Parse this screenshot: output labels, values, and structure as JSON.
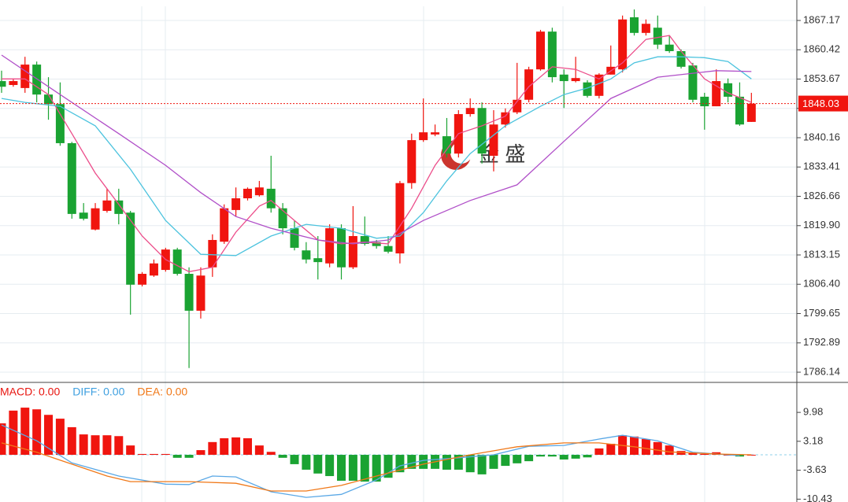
{
  "chart_data": [
    {
      "type": "candlestick",
      "open": [
        1853.2,
        1852.3,
        1851.6,
        1857.0,
        1850.1,
        1847.9,
        1838.9,
        1822.9,
        1819.0,
        1823.3,
        1825.7,
        1822.9,
        1806.3,
        1808.4,
        1809.7,
        1814.4,
        1808.8,
        1800.3,
        1810.3,
        1816.2,
        1823.5,
        1826.2,
        1826.9,
        1828.4,
        1823.9,
        1819.3,
        1814.2,
        1812.4,
        1811.2,
        1819.3,
        1810.3,
        1817.5,
        1816.1,
        1815.2,
        1813.5,
        1829.7,
        1839.6,
        1840.9,
        1840.5,
        1836.5,
        1845.6,
        1847.0,
        1836.0,
        1843.2,
        1846.0,
        1848.9,
        1855.9,
        1864.6,
        1854.7,
        1853.2,
        1852.9,
        1849.8,
        1854.7,
        1855.9,
        1867.9,
        1864.3,
        1865.5,
        1861.6,
        1860.1,
        1856.8,
        1849.6,
        1847.4,
        1852.7,
        1849.6,
        1843.8
      ],
      "high": [
        1855.6,
        1853.8,
        1858.8,
        1857.7,
        1854.1,
        1852.9,
        1839.2,
        1825.1,
        1825.1,
        1828.4,
        1828.4,
        1823.3,
        1809.2,
        1812.1,
        1814.8,
        1814.8,
        1810.3,
        1810.3,
        1817.9,
        1824.8,
        1828.7,
        1828.7,
        1830.2,
        1836.0,
        1825.1,
        1821.1,
        1816.1,
        1817.5,
        1820.2,
        1820.2,
        1824.4,
        1822.0,
        1816.6,
        1817.5,
        1830.2,
        1841.1,
        1849.2,
        1843.2,
        1844.7,
        1846.5,
        1849.2,
        1848.3,
        1846.5,
        1846.9,
        1857.4,
        1856.5,
        1865.0,
        1865.5,
        1855.9,
        1858.8,
        1853.4,
        1855.0,
        1861.4,
        1868.3,
        1869.7,
        1867.4,
        1868.3,
        1863.7,
        1860.5,
        1857.4,
        1850.5,
        1855.9,
        1853.8,
        1852.9,
        1850.5
      ],
      "low": [
        1850.5,
        1851.9,
        1850.5,
        1848.3,
        1844.3,
        1838.3,
        1821.5,
        1821.1,
        1818.8,
        1822.9,
        1820.2,
        1799.4,
        1805.9,
        1808.1,
        1809.3,
        1808.4,
        1787.1,
        1798.5,
        1808.1,
        1815.7,
        1822.0,
        1825.7,
        1826.6,
        1822.9,
        1817.9,
        1814.2,
        1811.2,
        1807.5,
        1810.3,
        1807.5,
        1809.9,
        1815.3,
        1814.6,
        1813.5,
        1811.2,
        1828.4,
        1839.2,
        1840.5,
        1835.6,
        1835.6,
        1845.0,
        1834.2,
        1832.4,
        1842.5,
        1845.6,
        1848.3,
        1855.6,
        1852.9,
        1847.0,
        1852.9,
        1849.4,
        1849.2,
        1854.7,
        1855.2,
        1863.7,
        1863.7,
        1860.6,
        1859.7,
        1856.1,
        1848.3,
        1842.0,
        1847.4,
        1848.3,
        1842.9,
        1843.8
      ],
      "close": [
        1851.9,
        1853.2,
        1857.0,
        1850.1,
        1847.9,
        1838.9,
        1822.6,
        1821.5,
        1823.9,
        1825.7,
        1822.6,
        1806.3,
        1808.8,
        1811.2,
        1814.4,
        1808.8,
        1800.3,
        1808.4,
        1816.6,
        1823.9,
        1826.2,
        1828.4,
        1828.7,
        1823.9,
        1819.3,
        1814.8,
        1812.1,
        1811.5,
        1819.3,
        1810.3,
        1817.5,
        1815.7,
        1815.2,
        1813.9,
        1829.7,
        1839.6,
        1841.4,
        1841.4,
        1836.5,
        1845.6,
        1847.0,
        1836.5,
        1843.2,
        1846.0,
        1848.9,
        1855.9,
        1864.6,
        1854.1,
        1853.2,
        1853.9,
        1849.8,
        1854.7,
        1856.5,
        1867.4,
        1864.3,
        1866.4,
        1861.6,
        1860.1,
        1856.5,
        1848.9,
        1847.4,
        1853.2,
        1849.6,
        1843.2,
        1848.0
      ],
      "up_color": "#f0150f",
      "down_color": "#1aa332",
      "ylim": [
        1783.97,
        1870.43
      ],
      "yticks": [
        1867.17,
        1860.42,
        1853.67,
        1846.92,
        1840.16,
        1833.41,
        1826.66,
        {
          "value": 1819.9,
          "label": "1819.90"
        },
        1813.15,
        {
          "value": 1806.4,
          "label": "1806.40"
        },
        1799.65,
        1792.89,
        1786.14
      ],
      "last_price": 1848.03,
      "ma": [
        {
          "color": "#ec4d8a",
          "x": [
            0,
            2,
            4,
            6,
            8,
            10,
            12,
            14,
            16,
            18,
            20,
            22,
            23,
            25,
            27,
            29,
            31,
            33,
            35,
            37,
            39,
            41,
            43,
            45,
            47,
            49,
            51,
            53,
            55,
            57,
            58,
            60,
            62,
            64
          ],
          "values": [
            1853.7,
            1853.7,
            1850.1,
            1841.1,
            1832.0,
            1824.8,
            1817.5,
            1812.1,
            1809.3,
            1810.3,
            1818.4,
            1824.4,
            1825.7,
            1821.1,
            1816.6,
            1815.7,
            1816.1,
            1815.7,
            1823.9,
            1833.8,
            1841.1,
            1842.9,
            1845.1,
            1851.9,
            1856.5,
            1855.9,
            1853.7,
            1857.4,
            1862.8,
            1863.7,
            1860.1,
            1853.7,
            1850.5,
            1848.3
          ]
        },
        {
          "color": "#4cc3de",
          "x": [
            0,
            2,
            5,
            8,
            11,
            14,
            17,
            20,
            23,
            26,
            29,
            32,
            34,
            36,
            38,
            40,
            43,
            46,
            48,
            50,
            52,
            54,
            56,
            58,
            60,
            62,
            64
          ],
          "values": [
            1849.2,
            1848.3,
            1847.4,
            1842.9,
            1832.9,
            1821.1,
            1813.3,
            1813.0,
            1817.5,
            1820.2,
            1819.3,
            1817.0,
            1817.5,
            1822.9,
            1830.2,
            1836.5,
            1842.9,
            1847.4,
            1850.1,
            1851.6,
            1853.7,
            1857.4,
            1858.8,
            1858.8,
            1858.6,
            1857.7,
            1853.7
          ]
        },
        {
          "color": "#b04fc8",
          "x": [
            0,
            5,
            10,
            14,
            17,
            20,
            23,
            27,
            30,
            33,
            36,
            40,
            44,
            48,
            52,
            56,
            59,
            61,
            64
          ],
          "values": [
            1859.2,
            1850.1,
            1841.1,
            1833.8,
            1827.5,
            1822.0,
            1819.3,
            1816.6,
            1815.7,
            1816.6,
            1821.1,
            1825.7,
            1829.3,
            1839.3,
            1849.2,
            1854.1,
            1855.0,
            1855.6,
            1855.4
          ]
        }
      ],
      "watermark": "金 盛"
    },
    {
      "type": "macd",
      "legend": [
        {
          "text": "MACD: 0.00",
          "color": "#e8150f"
        },
        {
          "text": "DIFF: 0.00",
          "color": "#3fa0e0"
        },
        {
          "text": "DEA: 0.00",
          "color": "#f07818"
        }
      ],
      "histogram": [
        7.4,
        10.4,
        11.1,
        10.7,
        9.4,
        8.5,
        6.5,
        4.8,
        4.6,
        4.6,
        4.4,
        2.2,
        0.2,
        0.2,
        0.2,
        -0.7,
        -0.7,
        1.1,
        3.0,
        3.9,
        4.1,
        3.9,
        2.2,
        0.7,
        -0.7,
        -2.2,
        -3.5,
        -4.4,
        -5.0,
        -6.1,
        -6.1,
        -6.3,
        -6.3,
        -5.4,
        -4.1,
        -3.3,
        -3.3,
        -3.3,
        -3.5,
        -3.5,
        -4.1,
        -4.6,
        -3.3,
        -2.6,
        -2.0,
        -1.5,
        -0.4,
        -0.4,
        -1.1,
        -0.9,
        -0.6,
        1.5,
        2.6,
        4.6,
        4.3,
        3.7,
        3.0,
        2.2,
        0.9,
        0.4,
        0.2,
        0.6,
        0,
        -0.4,
        0
      ],
      "up_color": "#f0150f",
      "down_color": "#1aa332",
      "series": [
        {
          "color": "#5aa8e6",
          "x": [
            0,
            3,
            6,
            10,
            14,
            16,
            18,
            20,
            23,
            26,
            29,
            32,
            34,
            36,
            39,
            42,
            45,
            48,
            51,
            53,
            56,
            59,
            63
          ],
          "values": [
            7.0,
            3.3,
            -1.9,
            -5.0,
            -6.9,
            -7.0,
            -5.0,
            -5.2,
            -8.7,
            -10.0,
            -9.3,
            -5.9,
            -2.6,
            -1.3,
            -0.7,
            0,
            2.0,
            2.2,
            3.7,
            4.6,
            3.3,
            0.6,
            -0.2
          ]
        },
        {
          "color": "#f07818",
          "x": [
            0,
            3,
            6,
            9,
            11,
            16,
            20,
            23,
            26,
            29,
            32,
            36,
            40,
            44,
            48,
            51,
            54,
            57,
            61,
            64
          ],
          "values": [
            2.8,
            0.6,
            -2.2,
            -5.0,
            -6.3,
            -6.3,
            -6.7,
            -8.5,
            -8.5,
            -7.2,
            -5.0,
            -2.2,
            0,
            1.9,
            2.8,
            2.8,
            1.9,
            0.7,
            0.2,
            0
          ]
        }
      ],
      "ylim": [
        -11.1,
        16.85
      ],
      "yticks": [
        9.98,
        3.18,
        -3.63,
        -10.43
      ]
    }
  ]
}
